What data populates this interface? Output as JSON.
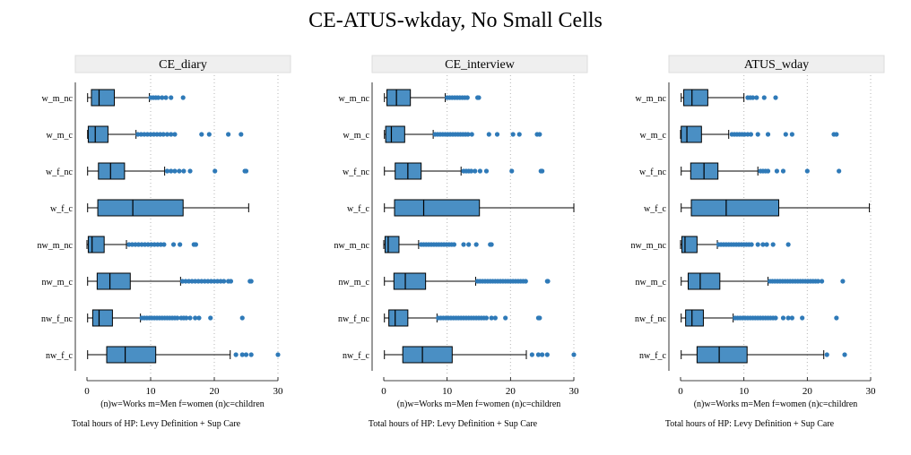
{
  "title": "CE-ATUS-wkday, No Small Cells",
  "colors": {
    "box_fill": "#4a8fc4",
    "box_stroke": "#000000",
    "outlier": "#2f7ab8",
    "panel_header": "#efefef",
    "grid": "#b5b5b5"
  },
  "chart_data": [
    {
      "type": "boxplot",
      "panel_title": "CE_diary",
      "categories": [
        "w_m_nc",
        "w_m_c",
        "w_f_nc",
        "w_f_c",
        "nw_m_nc",
        "nw_m_c",
        "nw_f_nc",
        "nw_f_c"
      ],
      "xlim": [
        0,
        30
      ],
      "xticks": [
        0,
        10,
        20,
        30
      ],
      "xnote": "(n)w=Works m=Men f=women (n)c=children",
      "xlabel": "Total hours of HP: Levy Definition + Sup Care",
      "grid": true,
      "series": [
        {
          "min": 0.1,
          "q1": 0.7,
          "median": 1.9,
          "q3": 4.3,
          "max": 9.8,
          "outliers": [
            10.0,
            10.4,
            10.8,
            11.2,
            11.8,
            12.4,
            13.2,
            15.1
          ]
        },
        {
          "min": 0.1,
          "q1": 0.2,
          "median": 1.3,
          "q3": 3.3,
          "max": 7.7,
          "outliers": [
            8.0,
            8.5,
            9.0,
            9.5,
            10.0,
            10.5,
            11.0,
            11.5,
            12.0,
            12.6,
            13.2,
            13.8,
            18.0,
            19.2,
            22.2,
            24.2
          ]
        },
        {
          "min": 0.1,
          "q1": 1.8,
          "median": 3.7,
          "q3": 5.9,
          "max": 12.2,
          "outliers": [
            12.6,
            13.2,
            13.8,
            14.5,
            15.2,
            16.2,
            20.1,
            24.8,
            25.0
          ]
        },
        {
          "min": 0.1,
          "q1": 1.7,
          "median": 7.2,
          "q3": 15.1,
          "max": 25.4,
          "outliers": []
        },
        {
          "min": 0.0,
          "q1": 0.2,
          "median": 0.8,
          "q3": 2.7,
          "max": 6.2,
          "outliers": [
            6.6,
            7.1,
            7.6,
            8.1,
            8.6,
            9.1,
            9.6,
            10.1,
            10.6,
            11.1,
            11.6,
            12.1,
            13.6,
            14.6,
            16.8,
            17.1
          ]
        },
        {
          "min": 0.1,
          "q1": 1.6,
          "median": 3.6,
          "q3": 6.8,
          "max": 14.7,
          "outliers": [
            15.0,
            15.5,
            16.0,
            16.5,
            17.0,
            17.5,
            18.0,
            18.5,
            19.0,
            19.5,
            20.0,
            20.5,
            21.0,
            21.5,
            22.2,
            22.6,
            25.6,
            25.8
          ]
        },
        {
          "min": 0.1,
          "q1": 0.9,
          "median": 1.9,
          "q3": 4.0,
          "max": 8.4,
          "outliers": [
            8.6,
            9.0,
            9.4,
            9.8,
            10.2,
            10.6,
            11.0,
            11.4,
            11.8,
            12.2,
            12.6,
            13.0,
            13.4,
            13.8,
            14.2,
            14.8,
            15.2,
            15.6,
            16.2,
            17.0,
            17.6,
            19.4,
            24.4
          ]
        },
        {
          "min": 0.1,
          "q1": 3.1,
          "median": 6.0,
          "q3": 10.8,
          "max": 22.5,
          "outliers": [
            23.4,
            24.4,
            25.0,
            25.8,
            30.0
          ]
        }
      ]
    },
    {
      "type": "boxplot",
      "panel_title": "CE_interview",
      "categories": [
        "w_m_nc",
        "w_m_c",
        "w_f_nc",
        "w_f_c",
        "nw_m_nc",
        "nw_m_c",
        "nw_f_nc",
        "nw_f_c"
      ],
      "xlim": [
        0,
        30
      ],
      "xticks": [
        0,
        10,
        20,
        30
      ],
      "xnote": "(n)w=Works m=Men f=women (n)c=children",
      "xlabel": "Total hours of HP: Levy Definition + Sup Care",
      "grid": true,
      "series": [
        {
          "min": 0.1,
          "q1": 0.5,
          "median": 2.0,
          "q3": 4.2,
          "max": 9.7,
          "outliers": [
            10.0,
            10.4,
            10.8,
            11.2,
            11.6,
            12.0,
            12.4,
            12.8,
            13.2,
            14.8,
            15.0
          ]
        },
        {
          "min": 0.1,
          "q1": 0.3,
          "median": 1.2,
          "q3": 3.3,
          "max": 7.8,
          "outliers": [
            8.1,
            8.5,
            8.9,
            9.3,
            9.7,
            10.1,
            10.5,
            10.9,
            11.3,
            11.7,
            12.1,
            12.5,
            12.9,
            13.3,
            13.9,
            16.6,
            17.9,
            20.4,
            21.4,
            24.2,
            24.6
          ]
        },
        {
          "min": 0.1,
          "q1": 1.8,
          "median": 3.8,
          "q3": 5.9,
          "max": 12.2,
          "outliers": [
            12.6,
            13.0,
            13.4,
            13.8,
            14.4,
            15.2,
            16.2,
            20.2,
            24.8,
            25.0
          ]
        },
        {
          "min": 0.1,
          "q1": 1.7,
          "median": 6.3,
          "q3": 15.1,
          "max": 30.0,
          "outliers": []
        },
        {
          "min": 0.0,
          "q1": 0.2,
          "median": 0.7,
          "q3": 2.4,
          "max": 5.5,
          "outliers": [
            5.9,
            6.3,
            6.7,
            7.1,
            7.5,
            7.9,
            8.3,
            8.7,
            9.1,
            9.5,
            9.9,
            10.3,
            10.7,
            11.1,
            12.6,
            13.4,
            14.6,
            16.8,
            17.0
          ]
        },
        {
          "min": 0.1,
          "q1": 1.6,
          "median": 3.4,
          "q3": 6.6,
          "max": 14.5,
          "outliers": [
            14.8,
            15.2,
            15.6,
            16.0,
            16.4,
            16.8,
            17.2,
            17.6,
            18.0,
            18.4,
            18.8,
            19.2,
            19.6,
            20.0,
            20.4,
            20.8,
            21.2,
            21.6,
            22.0,
            22.4,
            25.8,
            25.9
          ]
        },
        {
          "min": 0.1,
          "q1": 0.8,
          "median": 1.8,
          "q3": 3.8,
          "max": 8.4,
          "outliers": [
            8.6,
            9.0,
            9.4,
            9.8,
            10.2,
            10.6,
            11.0,
            11.4,
            11.8,
            12.2,
            12.6,
            13.0,
            13.4,
            13.8,
            14.2,
            14.6,
            15.0,
            15.4,
            15.8,
            16.2,
            17.0,
            17.6,
            19.2,
            24.4,
            24.6
          ]
        },
        {
          "min": 0.1,
          "q1": 3.0,
          "median": 6.1,
          "q3": 10.8,
          "max": 22.5,
          "outliers": [
            23.4,
            24.4,
            25.0,
            25.8,
            30.0
          ]
        }
      ]
    },
    {
      "type": "boxplot",
      "panel_title": "ATUS_wday",
      "categories": [
        "w_m_nc",
        "w_m_c",
        "w_f_nc",
        "w_f_c",
        "nw_m_nc",
        "nw_m_c",
        "nw_f_nc",
        "nw_f_c"
      ],
      "xlim": [
        0,
        30
      ],
      "xticks": [
        0,
        10,
        20,
        30
      ],
      "xnote": "(n)w=Works m=Men f=women (n)c=children",
      "xlabel": "Total hours of HP: Levy Definition + Sup Care",
      "grid": true,
      "series": [
        {
          "min": 0.1,
          "q1": 0.5,
          "median": 1.8,
          "q3": 4.3,
          "max": 10.0,
          "outliers": [
            10.6,
            11.0,
            11.4,
            12.0,
            13.2,
            15.0
          ]
        },
        {
          "min": 0.0,
          "q1": 0.1,
          "median": 1.0,
          "q3": 3.3,
          "max": 7.6,
          "outliers": [
            8.1,
            8.5,
            8.9,
            9.3,
            9.7,
            10.1,
            10.6,
            11.1,
            12.2,
            13.8,
            16.6,
            17.6,
            24.2,
            24.6
          ]
        },
        {
          "min": 0.1,
          "q1": 1.6,
          "median": 3.7,
          "q3": 5.9,
          "max": 12.2,
          "outliers": [
            12.6,
            13.0,
            13.4,
            13.8,
            15.2,
            16.2,
            20.0,
            25.0
          ]
        },
        {
          "min": 0.1,
          "q1": 1.7,
          "median": 7.2,
          "q3": 15.5,
          "max": 29.8,
          "outliers": []
        },
        {
          "min": 0.0,
          "q1": 0.2,
          "median": 0.7,
          "q3": 2.6,
          "max": 5.8,
          "outliers": [
            6.0,
            6.4,
            6.8,
            7.2,
            7.6,
            8.0,
            8.4,
            8.8,
            9.2,
            9.6,
            10.0,
            10.4,
            10.8,
            11.2,
            12.2,
            13.0,
            13.6,
            14.6,
            17.0
          ]
        },
        {
          "min": 0.1,
          "q1": 1.2,
          "median": 3.1,
          "q3": 6.2,
          "max": 13.8,
          "outliers": [
            14.1,
            14.5,
            14.9,
            15.3,
            15.7,
            16.1,
            16.5,
            16.9,
            17.3,
            17.7,
            18.1,
            18.5,
            18.9,
            19.3,
            19.7,
            20.1,
            20.5,
            20.9,
            21.3,
            21.7,
            22.3,
            25.6
          ]
        },
        {
          "min": 0.1,
          "q1": 0.8,
          "median": 1.8,
          "q3": 3.6,
          "max": 8.3,
          "outliers": [
            8.6,
            9.0,
            9.4,
            9.8,
            10.2,
            10.6,
            11.0,
            11.4,
            11.8,
            12.2,
            12.6,
            13.0,
            13.4,
            13.8,
            14.2,
            14.6,
            15.0,
            16.2,
            17.0,
            17.6,
            19.2,
            24.6
          ]
        },
        {
          "min": 0.1,
          "q1": 2.6,
          "median": 6.1,
          "q3": 10.5,
          "max": 22.6,
          "outliers": [
            23.1,
            25.9
          ]
        }
      ]
    }
  ]
}
